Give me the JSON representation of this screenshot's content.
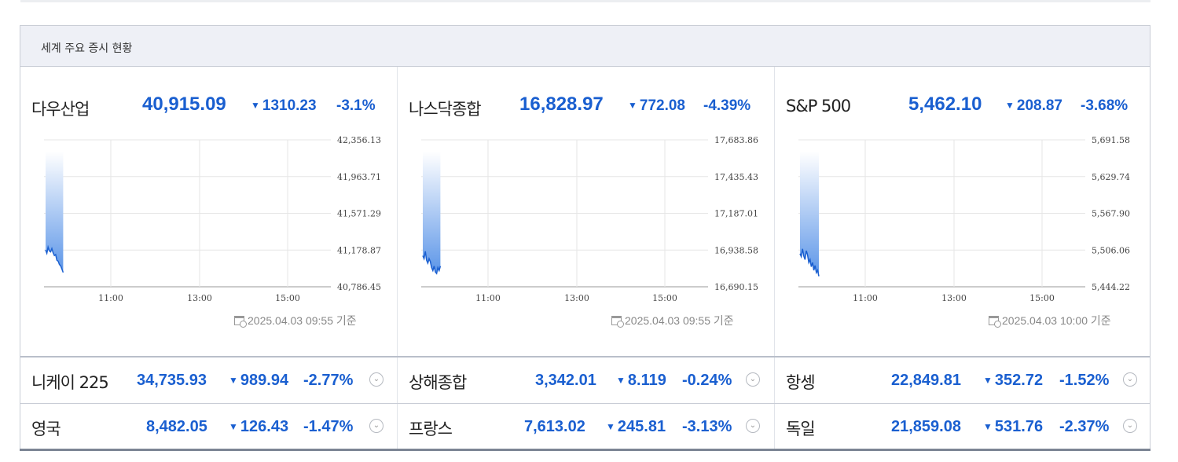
{
  "header": {
    "title": "세계 주요 증시 현황"
  },
  "colors": {
    "down": "#1a5fd0",
    "gradient_top": "#ffffff",
    "gradient_bottom": "#5b95e8",
    "line": "#1a5fd0"
  },
  "main_indices": [
    {
      "name": "다우산업",
      "value": "40,915.09",
      "change": "1310.23",
      "pct": "-3.1%",
      "timestamp": "2025.04.03 09:55 기준",
      "chart_data": {
        "type": "area",
        "yticks": [
          "42,356.13",
          "41,963.71",
          "41,571.29",
          "41,178.87",
          "40,786.45"
        ],
        "ylim": [
          40786.45,
          42356.13
        ],
        "xticks": [
          "11:00",
          "13:00",
          "15:00"
        ],
        "x": [
          0,
          1,
          2,
          3,
          4,
          5,
          6,
          7,
          8,
          9,
          10,
          11,
          12,
          13,
          14
        ],
        "y": [
          41180,
          41145,
          41210,
          41170,
          41160,
          41195,
          41150,
          41120,
          41130,
          41070,
          41060,
          41025,
          41010,
          40975,
          40940
        ]
      }
    },
    {
      "name": "나스닥종합",
      "value": "16,828.97",
      "change": "772.08",
      "pct": "-4.39%",
      "timestamp": "2025.04.03 09:55 기준",
      "chart_data": {
        "type": "area",
        "yticks": [
          "17,683.86",
          "17,435.43",
          "17,187.01",
          "16,938.58",
          "16,690.15"
        ],
        "ylim": [
          16690.15,
          17683.86
        ],
        "xticks": [
          "11:00",
          "13:00",
          "15:00"
        ],
        "x": [
          0,
          1,
          2,
          3,
          4,
          5,
          6,
          7,
          8,
          9,
          10,
          11,
          12,
          13,
          14
        ],
        "y": [
          16900,
          16880,
          16930,
          16870,
          16850,
          16880,
          16860,
          16820,
          16800,
          16830,
          16790,
          16780,
          16820,
          16800,
          16830
        ]
      }
    },
    {
      "name": "S&P 500",
      "value": "5,462.10",
      "change": "208.87",
      "pct": "-3.68%",
      "timestamp": "2025.04.03 10:00 기준",
      "chart_data": {
        "type": "area",
        "yticks": [
          "5,691.58",
          "5,629.74",
          "5,567.90",
          "5,506.06",
          "5,444.22"
        ],
        "ylim": [
          5444.22,
          5691.58
        ],
        "xticks": [
          "11:00",
          "13:00",
          "15:00"
        ],
        "x": [
          0,
          1,
          2,
          3,
          4,
          5,
          6,
          7,
          8,
          9,
          10,
          11,
          12,
          13,
          14,
          15
        ],
        "y": [
          5500,
          5495,
          5508,
          5496,
          5490,
          5505,
          5498,
          5485,
          5490,
          5478,
          5485,
          5472,
          5480,
          5468,
          5472,
          5462
        ]
      }
    }
  ],
  "sub_indices": [
    {
      "name": "니케이 225",
      "value": "34,735.93",
      "change": "989.94",
      "pct": "-2.77%"
    },
    {
      "name": "상해종합",
      "value": "3,342.01",
      "change": "8.119",
      "pct": "-0.24%"
    },
    {
      "name": "항셍",
      "value": "22,849.81",
      "change": "352.72",
      "pct": "-1.52%"
    },
    {
      "name": "영국",
      "value": "8,482.05",
      "change": "126.43",
      "pct": "-1.47%"
    },
    {
      "name": "프랑스",
      "value": "7,613.02",
      "change": "245.81",
      "pct": "-3.13%"
    },
    {
      "name": "독일",
      "value": "21,859.08",
      "change": "531.76",
      "pct": "-2.37%"
    }
  ],
  "down_symbol": "▼",
  "expand_symbol": "⌄"
}
